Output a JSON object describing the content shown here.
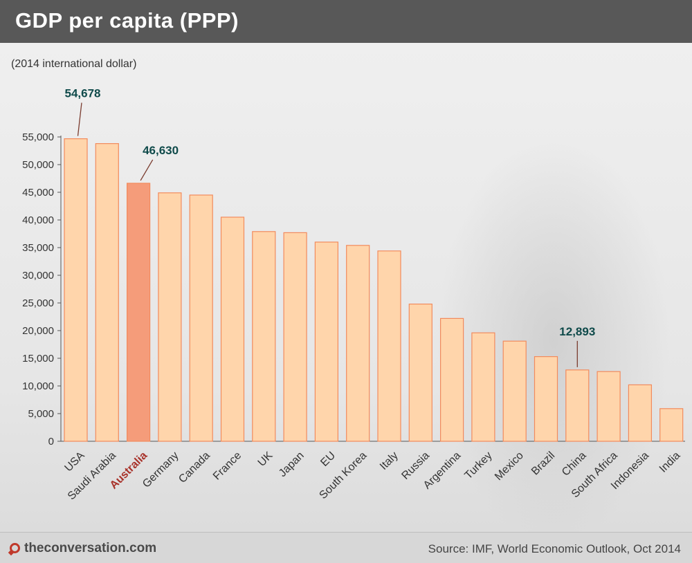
{
  "header": {
    "title": "GDP per capita (PPP)"
  },
  "unit_label": "(2014 international dollar)",
  "footer": {
    "brand": "theconversation.com",
    "source": "Source: IMF, World Economic Outlook, Oct 2014"
  },
  "colors": {
    "bar": "#ffd5ab",
    "bar_stroke": "#f28a5c",
    "highlight_bar": "#f59c7a",
    "highlight_label": "#a8322a",
    "callout_text": "#0f4a4a"
  },
  "chart_data": {
    "type": "bar",
    "title": "GDP per capita (PPP)",
    "ylabel": "(2014 international dollar)",
    "ylim": [
      0,
      55000
    ],
    "yticks": [
      0,
      5000,
      10000,
      15000,
      20000,
      25000,
      30000,
      35000,
      40000,
      45000,
      50000,
      55000
    ],
    "ytick_labels": [
      "0",
      "5,000",
      "10,000",
      "15,000",
      "20,000",
      "25,000",
      "30,000",
      "35,000",
      "40,000",
      "45,000",
      "50,000",
      "55,000"
    ],
    "categories": [
      "USA",
      "Saudi Arabia",
      "Australia",
      "Germany",
      "Canada",
      "France",
      "UK",
      "Japan",
      "EU",
      "South Korea",
      "Italy",
      "Russia",
      "Argentina",
      "Turkey",
      "Mexico",
      "Brazil",
      "China",
      "South Africa",
      "Indonesia",
      "India"
    ],
    "values": [
      54678,
      53800,
      46630,
      44900,
      44500,
      40500,
      37900,
      37700,
      36000,
      35400,
      34400,
      24800,
      22200,
      19600,
      18100,
      15300,
      12893,
      12600,
      10200,
      5900
    ],
    "highlight": "Australia",
    "annotations": [
      {
        "category": "USA",
        "text": "54,678"
      },
      {
        "category": "Australia",
        "text": "46,630"
      },
      {
        "category": "China",
        "text": "12,893"
      }
    ],
    "grid": false,
    "legend": "none"
  }
}
